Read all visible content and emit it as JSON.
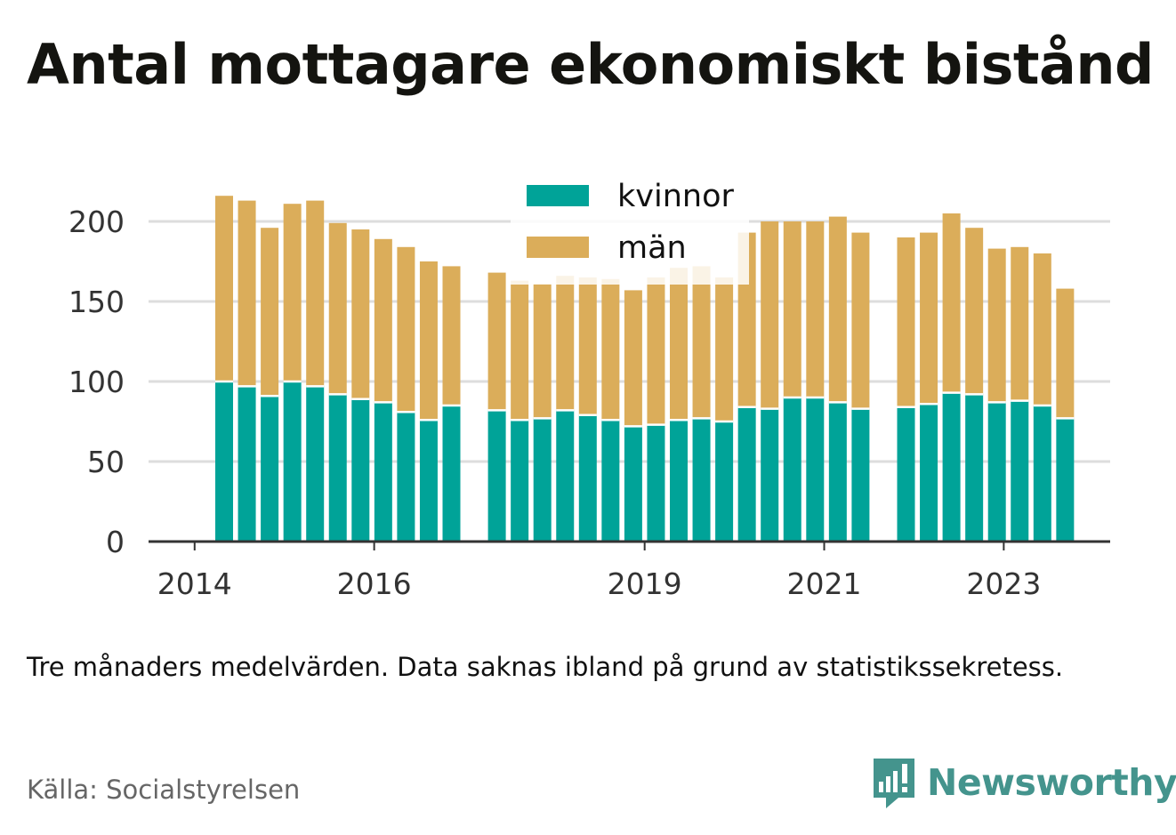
{
  "title": "Antal mottagare ekonomiskt bistånd",
  "note": "Tre månaders medelvärden. Data saknas ibland på grund av statistikssekretess.",
  "source": "Källa: Socialstyrelsen",
  "brand": {
    "name": "Newsworthy",
    "icon": "newsworthy-chart-bubble-icon",
    "color": "#44948d"
  },
  "colors": {
    "kvinnor": "#00a398",
    "man": "#dbad5a",
    "grid": "#dddddd",
    "axis": "#333333"
  },
  "chart_data": {
    "type": "bar",
    "stacked": true,
    "x_ticks": [
      "2014",
      "2016",
      "2019",
      "2021",
      "2023"
    ],
    "ylim": [
      0,
      220
    ],
    "y_ticks": [
      0,
      50,
      100,
      150,
      200
    ],
    "grid": true,
    "legend_position": "top-center",
    "series": [
      {
        "name": "kvinnor",
        "color": "#00a398",
        "values": [
          100,
          97,
          91,
          100,
          97,
          92,
          89,
          87,
          81,
          76,
          85,
          null,
          82,
          76,
          77,
          82,
          79,
          76,
          72,
          73,
          76,
          77,
          75,
          84,
          83,
          90,
          90,
          87,
          83,
          null,
          84,
          86,
          93,
          92,
          87,
          88,
          85,
          77
        ]
      },
      {
        "name": "män",
        "color": "#dbad5a",
        "values": [
          116,
          116,
          105,
          111,
          116,
          107,
          106,
          102,
          103,
          99,
          87,
          null,
          86,
          87,
          84,
          84,
          86,
          88,
          85,
          92,
          95,
          95,
          90,
          109,
          117,
          110,
          110,
          116,
          110,
          null,
          106,
          107,
          112,
          104,
          96,
          96,
          95,
          81
        ]
      }
    ]
  }
}
